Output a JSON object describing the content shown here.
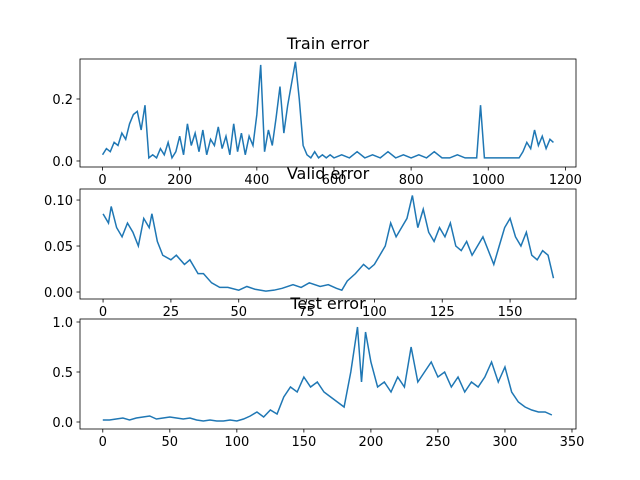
{
  "chart_data": [
    {
      "type": "line",
      "title": "Train error",
      "color": "#1f77b4",
      "x": [
        0,
        10,
        20,
        30,
        40,
        50,
        60,
        70,
        80,
        90,
        100,
        110,
        120,
        130,
        140,
        150,
        160,
        170,
        180,
        190,
        200,
        210,
        220,
        230,
        240,
        250,
        260,
        270,
        280,
        290,
        300,
        310,
        320,
        330,
        340,
        350,
        360,
        370,
        380,
        390,
        400,
        410,
        420,
        430,
        440,
        450,
        460,
        470,
        480,
        490,
        500,
        510,
        520,
        530,
        540,
        550,
        560,
        570,
        580,
        590,
        600,
        620,
        640,
        660,
        680,
        700,
        720,
        740,
        760,
        780,
        800,
        820,
        840,
        860,
        880,
        900,
        920,
        940,
        960,
        970,
        980,
        990,
        1000,
        1020,
        1040,
        1060,
        1080,
        1090,
        1100,
        1110,
        1120,
        1130,
        1140,
        1150,
        1160,
        1169
      ],
      "values": [
        0.02,
        0.04,
        0.03,
        0.06,
        0.05,
        0.09,
        0.07,
        0.12,
        0.15,
        0.16,
        0.1,
        0.18,
        0.01,
        0.02,
        0.01,
        0.04,
        0.02,
        0.06,
        0.01,
        0.03,
        0.08,
        0.02,
        0.12,
        0.05,
        0.09,
        0.03,
        0.1,
        0.02,
        0.07,
        0.05,
        0.11,
        0.04,
        0.08,
        0.02,
        0.12,
        0.03,
        0.09,
        0.02,
        0.08,
        0.05,
        0.15,
        0.31,
        0.03,
        0.1,
        0.05,
        0.14,
        0.24,
        0.09,
        0.18,
        0.25,
        0.32,
        0.2,
        0.05,
        0.02,
        0.01,
        0.03,
        0.01,
        0.02,
        0.01,
        0.02,
        0.01,
        0.02,
        0.01,
        0.03,
        0.01,
        0.02,
        0.01,
        0.03,
        0.01,
        0.02,
        0.01,
        0.02,
        0.01,
        0.03,
        0.01,
        0.01,
        0.02,
        0.01,
        0.01,
        0.01,
        0.18,
        0.01,
        0.01,
        0.01,
        0.01,
        0.01,
        0.01,
        0.03,
        0.06,
        0.04,
        0.1,
        0.05,
        0.08,
        0.04,
        0.07,
        0.06
      ],
      "xlim": [
        -58.5,
        1227.5
      ],
      "ylim": [
        -0.0194,
        0.329
      ],
      "xticks": [
        0,
        200,
        400,
        600,
        800,
        1000,
        1200
      ],
      "yticks": [
        {
          "value": 0,
          "label": "0.0"
        },
        0.2
      ]
    },
    {
      "type": "line",
      "title": "Valid error",
      "color": "#1f77b4",
      "x": [
        0,
        2,
        3,
        5,
        7,
        9,
        11,
        13,
        15,
        17,
        18,
        20,
        22,
        25,
        27,
        30,
        32,
        35,
        37,
        40,
        43,
        46,
        50,
        53,
        56,
        60,
        63,
        66,
        70,
        73,
        76,
        80,
        83,
        86,
        88,
        90,
        93,
        96,
        98,
        100,
        102,
        104,
        106,
        108,
        110,
        112,
        114,
        116,
        118,
        120,
        122,
        124,
        126,
        128,
        130,
        132,
        134,
        136,
        138,
        140,
        142,
        144,
        146,
        148,
        150,
        152,
        154,
        156,
        158,
        160,
        162,
        164,
        166
      ],
      "values": [
        0.085,
        0.075,
        0.093,
        0.07,
        0.06,
        0.075,
        0.065,
        0.05,
        0.08,
        0.07,
        0.085,
        0.055,
        0.04,
        0.035,
        0.04,
        0.03,
        0.035,
        0.02,
        0.02,
        0.01,
        0.005,
        0.005,
        0.002,
        0.006,
        0.003,
        0.001,
        0.002,
        0.004,
        0.008,
        0.005,
        0.01,
        0.006,
        0.008,
        0.004,
        0.002,
        0.012,
        0.02,
        0.03,
        0.025,
        0.03,
        0.04,
        0.05,
        0.075,
        0.06,
        0.07,
        0.08,
        0.105,
        0.07,
        0.09,
        0.065,
        0.055,
        0.07,
        0.06,
        0.075,
        0.05,
        0.045,
        0.055,
        0.04,
        0.05,
        0.06,
        0.045,
        0.03,
        0.05,
        0.07,
        0.08,
        0.06,
        0.05,
        0.065,
        0.04,
        0.035,
        0.045,
        0.04,
        0.015
      ],
      "xlim": [
        -8.5,
        174.3
      ],
      "ylim": [
        -0.0076,
        0.112
      ],
      "xticks": [
        0,
        25,
        50,
        75,
        100,
        125,
        150
      ],
      "yticks": [
        {
          "value": 0,
          "label": "0.00"
        },
        {
          "value": 0.05,
          "label": "0.05"
        },
        {
          "value": 0.1,
          "label": "0.10"
        }
      ]
    },
    {
      "type": "line",
      "title": "Test error",
      "color": "#1f77b4",
      "x": [
        0,
        5,
        10,
        15,
        20,
        25,
        30,
        35,
        40,
        45,
        50,
        55,
        60,
        65,
        70,
        75,
        80,
        85,
        90,
        95,
        100,
        105,
        110,
        115,
        120,
        125,
        130,
        135,
        140,
        145,
        150,
        155,
        160,
        165,
        170,
        175,
        180,
        185,
        190,
        193,
        196,
        200,
        205,
        210,
        215,
        220,
        225,
        230,
        235,
        240,
        245,
        250,
        255,
        260,
        265,
        270,
        275,
        280,
        285,
        290,
        295,
        300,
        305,
        310,
        315,
        320,
        325,
        330,
        335
      ],
      "values": [
        0.02,
        0.02,
        0.03,
        0.04,
        0.02,
        0.04,
        0.05,
        0.06,
        0.03,
        0.04,
        0.05,
        0.04,
        0.03,
        0.04,
        0.02,
        0.01,
        0.02,
        0.01,
        0.01,
        0.02,
        0.01,
        0.03,
        0.06,
        0.1,
        0.05,
        0.12,
        0.08,
        0.25,
        0.35,
        0.3,
        0.45,
        0.35,
        0.4,
        0.3,
        0.25,
        0.2,
        0.15,
        0.5,
        0.95,
        0.4,
        0.9,
        0.6,
        0.35,
        0.4,
        0.3,
        0.45,
        0.35,
        0.75,
        0.4,
        0.5,
        0.6,
        0.45,
        0.5,
        0.35,
        0.45,
        0.3,
        0.4,
        0.35,
        0.45,
        0.6,
        0.4,
        0.55,
        0.3,
        0.2,
        0.15,
        0.12,
        0.1,
        0.1,
        0.07
      ],
      "xlim": [
        -17,
        353
      ],
      "ylim": [
        -0.07,
        1.03
      ],
      "xticks": [
        0,
        50,
        100,
        150,
        200,
        250,
        300,
        350
      ],
      "yticks": [
        {
          "value": 0,
          "label": "0.0"
        },
        {
          "value": 0.5,
          "label": "0.5"
        },
        {
          "value": 1,
          "label": "1.0"
        }
      ]
    }
  ]
}
